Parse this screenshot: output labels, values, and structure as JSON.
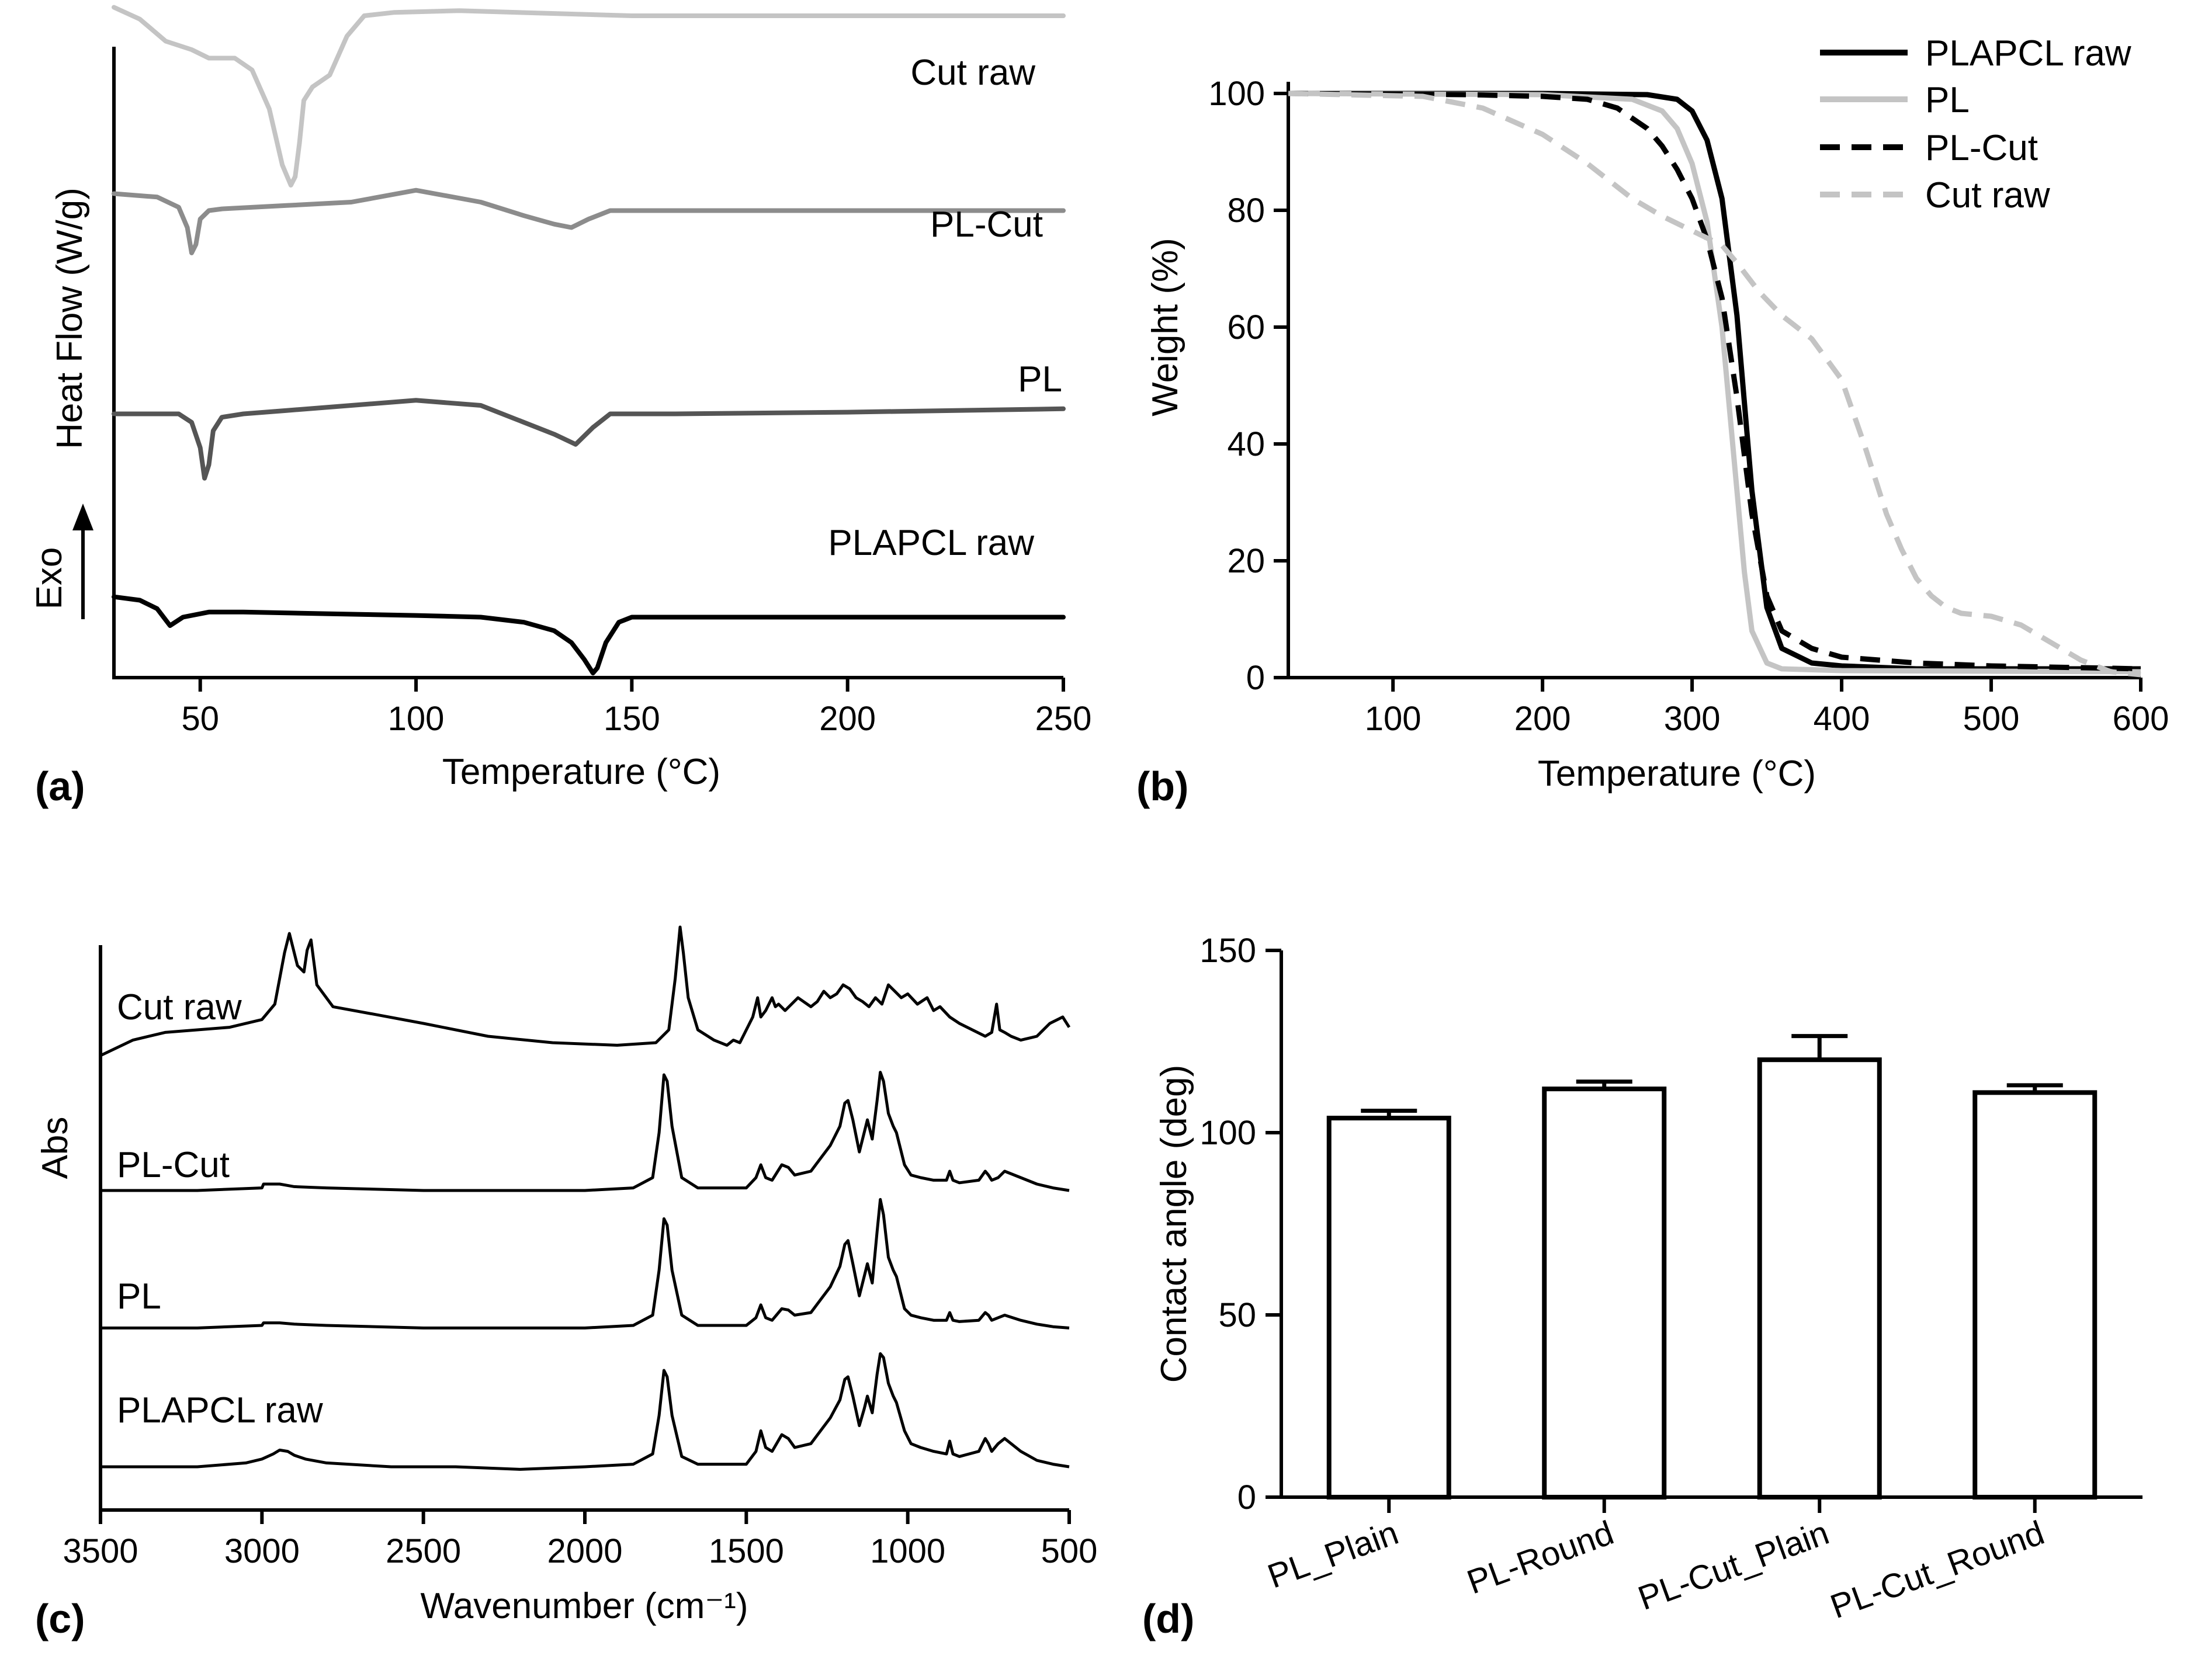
{
  "figure": {
    "panel_labels": [
      "(a)",
      "(b)",
      "(c)",
      "(d)"
    ],
    "colors": {
      "black": "#000000",
      "dark_gray": "#555555",
      "mid_gray": "#8c8c8c",
      "light_gray": "#c4c4c4"
    }
  },
  "chart_data": [
    {
      "id": "a",
      "type": "line",
      "title": "",
      "xlabel": "Temperature (°C)",
      "ylabel": "Heat Flow (W/g)",
      "exo_label": "Exo",
      "xlim": [
        30,
        250
      ],
      "xticks": [
        50,
        100,
        150,
        200,
        250
      ],
      "series": [
        {
          "name": "Cut raw",
          "color": "#c4c4c4",
          "offset": 3.7,
          "x": [
            30,
            36,
            42,
            48,
            52,
            58,
            62,
            66,
            69,
            71,
            72,
            73,
            74,
            76,
            80,
            84,
            88,
            95,
            110,
            150,
            200,
            250
          ],
          "y": [
            0.05,
            -0.02,
            -0.15,
            -0.2,
            -0.25,
            -0.25,
            -0.32,
            -0.55,
            -0.88,
            -1.0,
            -0.95,
            -0.75,
            -0.5,
            -0.42,
            -0.35,
            -0.12,
            0.0,
            0.02,
            0.03,
            0.0,
            0.0,
            0.0
          ]
        },
        {
          "name": "PL-Cut",
          "color": "#8c8c8c",
          "offset": 2.55,
          "x": [
            30,
            40,
            45,
            47,
            48,
            49,
            50,
            52,
            55,
            70,
            85,
            100,
            115,
            125,
            132,
            136,
            140,
            145,
            160,
            200,
            250
          ],
          "y": [
            0.1,
            0.08,
            0.02,
            -0.1,
            -0.25,
            -0.2,
            -0.05,
            0.0,
            0.01,
            0.03,
            0.05,
            0.12,
            0.05,
            -0.03,
            -0.08,
            -0.1,
            -0.05,
            0.0,
            0.0,
            0.0,
            0.0
          ]
        },
        {
          "name": "PL",
          "color": "#555555",
          "offset": 1.35,
          "x": [
            30,
            45,
            48,
            50,
            51,
            52,
            53,
            55,
            60,
            70,
            85,
            100,
            115,
            125,
            132,
            137,
            141,
            145,
            160,
            200,
            250
          ],
          "y": [
            0.0,
            0.0,
            -0.05,
            -0.2,
            -0.38,
            -0.3,
            -0.1,
            -0.02,
            0.0,
            0.02,
            0.05,
            0.08,
            0.05,
            -0.05,
            -0.12,
            -0.18,
            -0.08,
            0.0,
            0.0,
            0.01,
            0.03
          ]
        },
        {
          "name": "PLAPCL raw",
          "color": "#000000",
          "offset": 0.15,
          "x": [
            30,
            36,
            40,
            43,
            46,
            52,
            60,
            80,
            100,
            115,
            125,
            132,
            136,
            139,
            141,
            142,
            144,
            147,
            150,
            160,
            200,
            250
          ],
          "y": [
            0.12,
            0.1,
            0.05,
            -0.05,
            0.0,
            0.03,
            0.03,
            0.02,
            0.01,
            0.0,
            -0.03,
            -0.08,
            -0.15,
            -0.25,
            -0.33,
            -0.3,
            -0.15,
            -0.03,
            0.0,
            0.0,
            0.0,
            0.0
          ]
        }
      ]
    },
    {
      "id": "b",
      "type": "line",
      "title": "",
      "xlabel": "Temperature (°C)",
      "ylabel": "Weight (%)",
      "xlim": [
        30,
        600
      ],
      "ylim": [
        0,
        100
      ],
      "xticks": [
        100,
        200,
        300,
        400,
        500,
        600
      ],
      "yticks": [
        0,
        20,
        40,
        60,
        80,
        100
      ],
      "legend_position": "top-right",
      "series": [
        {
          "name": "PLAPCL raw",
          "color": "#000000",
          "dash": false,
          "x": [
            30,
            200,
            270,
            290,
            300,
            310,
            320,
            330,
            340,
            350,
            360,
            380,
            400,
            450,
            500,
            600
          ],
          "y": [
            100,
            100,
            99.8,
            99,
            97,
            92,
            82,
            62,
            32,
            12,
            5,
            2.5,
            2,
            1.5,
            1.5,
            1.5
          ]
        },
        {
          "name": "PL",
          "color": "#c4c4c4",
          "dash": false,
          "x": [
            30,
            200,
            260,
            280,
            290,
            300,
            310,
            320,
            330,
            335,
            340,
            350,
            360,
            400,
            600
          ],
          "y": [
            100,
            99.8,
            99,
            97,
            94,
            88,
            78,
            60,
            32,
            18,
            8,
            2.5,
            1.5,
            1.2,
            1
          ]
        },
        {
          "name": "PL-Cut",
          "color": "#000000",
          "dash": true,
          "x": [
            30,
            150,
            200,
            230,
            250,
            270,
            280,
            290,
            300,
            310,
            320,
            330,
            340,
            350,
            360,
            380,
            400,
            450,
            500,
            600
          ],
          "y": [
            100,
            99.8,
            99.5,
            99,
            97.5,
            94,
            91,
            87,
            82,
            75,
            65,
            48,
            28,
            14,
            8,
            5,
            3.5,
            2.5,
            2,
            1.5
          ]
        },
        {
          "name": "Cut raw",
          "color": "#c4c4c4",
          "dash": true,
          "x": [
            30,
            120,
            160,
            200,
            230,
            260,
            280,
            300,
            320,
            330,
            345,
            360,
            380,
            400,
            415,
            430,
            440,
            450,
            460,
            470,
            480,
            500,
            520,
            540,
            560,
            580,
            600
          ],
          "y": [
            100,
            99.5,
            97.5,
            93,
            88,
            82,
            79,
            76.5,
            74,
            71,
            66,
            62,
            58,
            51,
            40,
            28,
            22,
            17,
            14,
            12,
            11,
            10.5,
            9,
            6,
            3,
            1,
            0.5
          ]
        }
      ]
    },
    {
      "id": "c",
      "type": "line",
      "title": "",
      "xlabel": "Wavenumber (cm⁻¹)",
      "ylabel": "Abs",
      "xlim": [
        3500,
        500
      ],
      "xticks": [
        3500,
        3000,
        2500,
        2000,
        1500,
        1000,
        500
      ],
      "series": [
        {
          "name": "Cut raw",
          "color": "#000000",
          "offset": 3.4,
          "x": [
            3500,
            3400,
            3300,
            3200,
            3100,
            3000,
            2960,
            2930,
            2915,
            2890,
            2870,
            2860,
            2848,
            2830,
            2780,
            2650,
            2500,
            2300,
            2100,
            1900,
            1780,
            1740,
            1720,
            1705,
            1695,
            1680,
            1650,
            1600,
            1560,
            1540,
            1520,
            1480,
            1465,
            1455,
            1440,
            1420,
            1410,
            1400,
            1380,
            1340,
            1300,
            1280,
            1260,
            1240,
            1220,
            1200,
            1180,
            1160,
            1140,
            1120,
            1100,
            1080,
            1060,
            1040,
            1020,
            1000,
            970,
            940,
            920,
            900,
            870,
            840,
            800,
            760,
            740,
            725,
            715,
            700,
            680,
            650,
            600,
            560,
            520,
            500
          ],
          "y": [
            0.0,
            0.12,
            0.18,
            0.2,
            0.22,
            0.28,
            0.4,
            0.8,
            0.95,
            0.7,
            0.65,
            0.82,
            0.9,
            0.55,
            0.38,
            0.32,
            0.25,
            0.15,
            0.1,
            0.08,
            0.1,
            0.2,
            0.6,
            1.0,
            0.8,
            0.45,
            0.2,
            0.12,
            0.08,
            0.12,
            0.1,
            0.3,
            0.45,
            0.3,
            0.35,
            0.45,
            0.38,
            0.4,
            0.35,
            0.45,
            0.38,
            0.42,
            0.5,
            0.45,
            0.48,
            0.55,
            0.52,
            0.45,
            0.42,
            0.38,
            0.45,
            0.4,
            0.55,
            0.5,
            0.45,
            0.48,
            0.4,
            0.45,
            0.35,
            0.38,
            0.3,
            0.25,
            0.2,
            0.15,
            0.18,
            0.4,
            0.2,
            0.18,
            0.15,
            0.12,
            0.15,
            0.25,
            0.3,
            0.22
          ]
        },
        {
          "name": "PL-Cut",
          "color": "#000000",
          "offset": 2.35,
          "x": [
            3500,
            3200,
            3000,
            2995,
            2945,
            2900,
            2800,
            2500,
            2000,
            1850,
            1790,
            1770,
            1755,
            1745,
            1730,
            1700,
            1650,
            1500,
            1470,
            1455,
            1440,
            1420,
            1390,
            1370,
            1350,
            1300,
            1270,
            1240,
            1210,
            1195,
            1185,
            1170,
            1150,
            1135,
            1125,
            1110,
            1095,
            1085,
            1075,
            1060,
            1045,
            1035,
            1010,
            990,
            960,
            920,
            880,
            870,
            860,
            840,
            780,
            760,
            750,
            740,
            720,
            700,
            650,
            600,
            550,
            500
          ],
          "y": [
            0.0,
            0.0,
            0.02,
            0.05,
            0.05,
            0.03,
            0.02,
            0.0,
            0.0,
            0.02,
            0.1,
            0.45,
            0.9,
            0.85,
            0.5,
            0.1,
            0.02,
            0.02,
            0.1,
            0.2,
            0.1,
            0.08,
            0.2,
            0.18,
            0.12,
            0.15,
            0.25,
            0.35,
            0.5,
            0.68,
            0.7,
            0.55,
            0.3,
            0.45,
            0.55,
            0.4,
            0.7,
            0.92,
            0.85,
            0.6,
            0.5,
            0.45,
            0.2,
            0.12,
            0.1,
            0.08,
            0.08,
            0.15,
            0.08,
            0.06,
            0.08,
            0.15,
            0.12,
            0.08,
            0.1,
            0.15,
            0.1,
            0.05,
            0.02,
            0.0
          ]
        },
        {
          "name": "PL",
          "color": "#000000",
          "offset": 1.28,
          "x": [
            3500,
            3200,
            3000,
            2995,
            2945,
            2900,
            2800,
            2500,
            2000,
            1850,
            1790,
            1770,
            1755,
            1745,
            1730,
            1700,
            1650,
            1500,
            1470,
            1455,
            1440,
            1420,
            1390,
            1370,
            1350,
            1300,
            1270,
            1240,
            1210,
            1195,
            1185,
            1170,
            1150,
            1135,
            1125,
            1110,
            1095,
            1085,
            1075,
            1060,
            1045,
            1035,
            1010,
            990,
            960,
            920,
            880,
            870,
            860,
            840,
            780,
            760,
            750,
            740,
            720,
            700,
            650,
            600,
            550,
            500
          ],
          "y": [
            0.0,
            0.0,
            0.02,
            0.04,
            0.04,
            0.03,
            0.02,
            0.0,
            0.0,
            0.02,
            0.1,
            0.45,
            0.85,
            0.8,
            0.45,
            0.1,
            0.02,
            0.02,
            0.08,
            0.18,
            0.08,
            0.06,
            0.15,
            0.14,
            0.1,
            0.12,
            0.22,
            0.32,
            0.48,
            0.65,
            0.68,
            0.5,
            0.25,
            0.4,
            0.5,
            0.35,
            0.75,
            1.0,
            0.88,
            0.55,
            0.45,
            0.4,
            0.15,
            0.1,
            0.08,
            0.06,
            0.06,
            0.12,
            0.06,
            0.05,
            0.06,
            0.12,
            0.1,
            0.06,
            0.08,
            0.1,
            0.06,
            0.03,
            0.01,
            0.0
          ]
        },
        {
          "name": "PLAPCL raw",
          "color": "#000000",
          "offset": 0.2,
          "x": [
            3500,
            3200,
            3050,
            3000,
            2965,
            2945,
            2920,
            2900,
            2865,
            2800,
            2600,
            2400,
            2200,
            2000,
            1850,
            1790,
            1770,
            1755,
            1745,
            1730,
            1700,
            1650,
            1500,
            1470,
            1455,
            1440,
            1420,
            1390,
            1370,
            1350,
            1300,
            1270,
            1240,
            1210,
            1195,
            1185,
            1170,
            1150,
            1135,
            1125,
            1110,
            1095,
            1085,
            1075,
            1060,
            1045,
            1035,
            1010,
            990,
            960,
            920,
            880,
            870,
            860,
            840,
            780,
            760,
            750,
            740,
            720,
            700,
            650,
            600,
            550,
            500
          ],
          "y": [
            0.0,
            0.0,
            0.03,
            0.06,
            0.1,
            0.13,
            0.12,
            0.09,
            0.06,
            0.03,
            0.0,
            0.0,
            -0.02,
            0.0,
            0.02,
            0.1,
            0.4,
            0.75,
            0.7,
            0.4,
            0.08,
            0.02,
            0.02,
            0.12,
            0.28,
            0.15,
            0.12,
            0.25,
            0.22,
            0.15,
            0.18,
            0.28,
            0.38,
            0.52,
            0.68,
            0.7,
            0.55,
            0.32,
            0.45,
            0.55,
            0.42,
            0.72,
            0.88,
            0.85,
            0.65,
            0.55,
            0.5,
            0.28,
            0.18,
            0.15,
            0.12,
            0.1,
            0.2,
            0.1,
            0.08,
            0.12,
            0.22,
            0.18,
            0.12,
            0.18,
            0.22,
            0.12,
            0.05,
            0.02,
            0.0
          ]
        }
      ]
    },
    {
      "id": "d",
      "type": "bar",
      "title": "",
      "xlabel": "",
      "ylabel": "Contact angle (deg)",
      "ylim": [
        0,
        150
      ],
      "yticks": [
        0,
        50,
        100,
        150
      ],
      "categories": [
        "PL_Plain",
        "PL-Round",
        "PL-Cut_Plain",
        "PL-Cut_Round"
      ],
      "values": [
        104,
        112,
        120,
        111
      ],
      "errors": [
        2,
        2,
        6.5,
        2
      ]
    }
  ]
}
